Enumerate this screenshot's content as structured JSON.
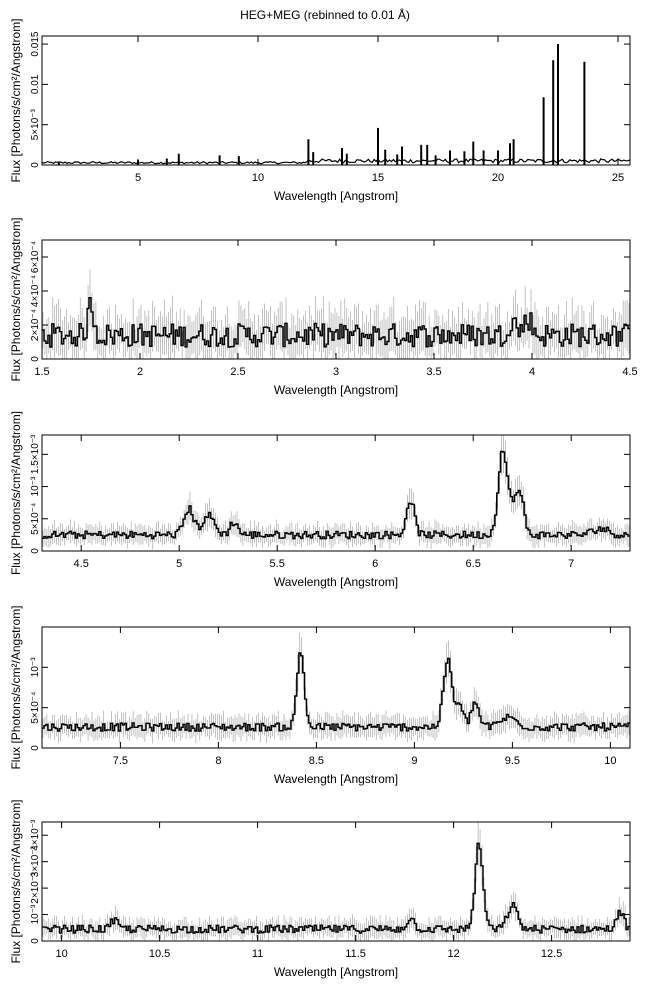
{
  "figure": {
    "title": "HEG+MEG (rebinned to 0.01 Å)"
  },
  "chart_data": [
    {
      "type": "line",
      "title": "HEG+MEG (rebinned to 0.01 Å)",
      "xlabel": "Wavelength [Angstrom]",
      "ylabel": "Flux [Photons/s/cm²/Angstrom]",
      "xlim": [
        1.0,
        25.5
      ],
      "ylim": [
        0,
        0.016
      ],
      "xticks": [
        5,
        10,
        15,
        20,
        25
      ],
      "xtick_labels": [
        "5",
        "10",
        "15",
        "20",
        "25"
      ],
      "yticks": [
        0,
        0.005,
        0.01,
        0.015
      ],
      "ytick_labels": [
        "0",
        "5×10⁻³",
        "0.01",
        "0.015"
      ],
      "series": [
        {
          "baseline": 0.0003,
          "lines": [
            {
              "x": 1.7,
              "y": 0.0004
            },
            {
              "x": 5.0,
              "y": 0.0006
            },
            {
              "x": 6.2,
              "y": 0.0008
            },
            {
              "x": 6.7,
              "y": 0.0014
            },
            {
              "x": 8.4,
              "y": 0.0012
            },
            {
              "x": 9.2,
              "y": 0.0011
            },
            {
              "x": 12.1,
              "y": 0.0032
            },
            {
              "x": 12.3,
              "y": 0.0016
            },
            {
              "x": 13.5,
              "y": 0.0021
            },
            {
              "x": 13.7,
              "y": 0.0014
            },
            {
              "x": 15.0,
              "y": 0.0046
            },
            {
              "x": 15.3,
              "y": 0.0019
            },
            {
              "x": 15.8,
              "y": 0.0013
            },
            {
              "x": 16.0,
              "y": 0.0023
            },
            {
              "x": 16.8,
              "y": 0.0025
            },
            {
              "x": 17.05,
              "y": 0.0025
            },
            {
              "x": 17.4,
              "y": 0.0012
            },
            {
              "x": 18.0,
              "y": 0.0018
            },
            {
              "x": 18.6,
              "y": 0.0017
            },
            {
              "x": 18.97,
              "y": 0.0029
            },
            {
              "x": 19.4,
              "y": 0.0018
            },
            {
              "x": 20.0,
              "y": 0.0018
            },
            {
              "x": 20.5,
              "y": 0.0027
            },
            {
              "x": 20.65,
              "y": 0.0032
            },
            {
              "x": 21.9,
              "y": 0.0084
            },
            {
              "x": 22.3,
              "y": 0.013
            },
            {
              "x": 22.5,
              "y": 0.015
            },
            {
              "x": 23.6,
              "y": 0.0128
            }
          ]
        }
      ]
    },
    {
      "type": "line",
      "xlabel": "Wavelength [Angstrom]",
      "ylabel": "Flux [Photons/s/cm²/Angstrom]",
      "xlim": [
        1.5,
        4.5
      ],
      "ylim": [
        0,
        0.0007
      ],
      "xticks": [
        1.5,
        2,
        2.5,
        3,
        3.5,
        4,
        4.5
      ],
      "xtick_labels": [
        "1.5",
        "2",
        "2.5",
        "3",
        "3.5",
        "4",
        "4.5"
      ],
      "yticks": [
        0,
        0.0002,
        0.0004,
        0.0006
      ],
      "ytick_labels": [
        "0",
        "2×10⁻⁴",
        "4×10⁻⁴",
        "6×10⁻⁴"
      ],
      "series": [
        {
          "baseline": 0.00014,
          "noise": 7e-05,
          "err": 0.0001,
          "lines": [
            {
              "x": 1.75,
              "w": 0.015,
              "h": 0.00018
            },
            {
              "x": 3.9,
              "w": 0.02,
              "h": 9e-05
            },
            {
              "x": 3.98,
              "w": 0.02,
              "h": 0.0001
            }
          ]
        }
      ]
    },
    {
      "type": "line",
      "xlabel": "Wavelength [Angstrom]",
      "ylabel": "Flux [Photons/s/cm²/Angstrom]",
      "xlim": [
        4.3,
        7.3
      ],
      "ylim": [
        0,
        0.0018
      ],
      "xticks": [
        4.5,
        5,
        5.5,
        6,
        6.5,
        7
      ],
      "xtick_labels": [
        "4.5",
        "5",
        "5.5",
        "6",
        "6.5",
        "7"
      ],
      "yticks": [
        0,
        0.0005,
        0.001,
        0.0015
      ],
      "ytick_labels": [
        "0",
        "5×10⁻⁴",
        "10⁻³",
        "1.5×10⁻³"
      ],
      "series": [
        {
          "baseline": 0.00025,
          "noise": 6e-05,
          "err": 0.0001,
          "lines": [
            {
              "x": 5.05,
              "w": 0.025,
              "h": 0.0004
            },
            {
              "x": 5.15,
              "w": 0.03,
              "h": 0.0003
            },
            {
              "x": 5.28,
              "w": 0.02,
              "h": 0.0002
            },
            {
              "x": 6.18,
              "w": 0.02,
              "h": 0.00055
            },
            {
              "x": 6.65,
              "w": 0.022,
              "h": 0.0013
            },
            {
              "x": 6.7,
              "w": 0.02,
              "h": 0.0004
            },
            {
              "x": 6.74,
              "w": 0.02,
              "h": 0.0006
            },
            {
              "x": 7.15,
              "w": 0.04,
              "h": 0.0001
            }
          ]
        }
      ]
    },
    {
      "type": "line",
      "xlabel": "Wavelength [Angstrom]",
      "ylabel": "Flux [Photons/s/cm²/Angstrom]",
      "xlim": [
        7.1,
        10.1
      ],
      "ylim": [
        0,
        0.0015
      ],
      "xticks": [
        7.5,
        8,
        8.5,
        9,
        9.5,
        10
      ],
      "xtick_labels": [
        "7.5",
        "8",
        "8.5",
        "9",
        "9.5",
        "10"
      ],
      "yticks": [
        0,
        0.0005,
        0.001
      ],
      "ytick_labels": [
        "0",
        "5×10⁻⁴",
        "10⁻³"
      ],
      "series": [
        {
          "baseline": 0.00026,
          "noise": 5e-05,
          "err": 9e-05,
          "lines": [
            {
              "x": 8.42,
              "w": 0.018,
              "h": 0.00095
            },
            {
              "x": 9.17,
              "w": 0.022,
              "h": 0.00082
            },
            {
              "x": 9.23,
              "w": 0.02,
              "h": 0.00025
            },
            {
              "x": 9.31,
              "w": 0.02,
              "h": 0.0003
            },
            {
              "x": 9.48,
              "w": 0.04,
              "h": 0.00012
            }
          ]
        }
      ]
    },
    {
      "type": "line",
      "xlabel": "Wavelength [Angstrom]",
      "ylabel": "Flux [Photons/s/cm²/Angstrom]",
      "xlim": [
        9.9,
        12.9
      ],
      "ylim": [
        0,
        0.0045
      ],
      "xticks": [
        10,
        10.5,
        11,
        11.5,
        12,
        12.5
      ],
      "xtick_labels": [
        "10",
        "10.5",
        "11",
        "11.5",
        "12",
        "12.5"
      ],
      "yticks": [
        0,
        0.001,
        0.002,
        0.003,
        0.004
      ],
      "ytick_labels": [
        "0",
        "10⁻³",
        "2×10⁻³",
        "3×10⁻³",
        "4×10⁻³"
      ],
      "series": [
        {
          "baseline": 0.00045,
          "noise": 0.00015,
          "err": 0.00025,
          "lines": [
            {
              "x": 12.13,
              "w": 0.02,
              "h": 0.0032
            },
            {
              "x": 12.3,
              "w": 0.025,
              "h": 0.0009
            },
            {
              "x": 11.78,
              "w": 0.02,
              "h": 0.0004
            },
            {
              "x": 12.85,
              "w": 0.02,
              "h": 0.0006
            },
            {
              "x": 10.27,
              "w": 0.02,
              "h": 0.0003
            }
          ]
        }
      ]
    }
  ]
}
